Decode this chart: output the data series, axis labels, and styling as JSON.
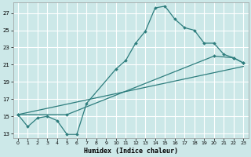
{
  "xlabel": "Humidex (Indice chaleur)",
  "bg_color": "#cce8e8",
  "line_color": "#2d7d7d",
  "xlim": [
    -0.5,
    23.5
  ],
  "ylim": [
    12.5,
    28.2
  ],
  "xticks": [
    0,
    1,
    2,
    3,
    4,
    5,
    6,
    7,
    8,
    9,
    10,
    11,
    12,
    13,
    14,
    15,
    16,
    17,
    18,
    19,
    20,
    21,
    22,
    23
  ],
  "yticks": [
    13,
    15,
    17,
    19,
    21,
    23,
    25,
    27
  ],
  "series1_x": [
    0,
    1,
    2,
    3,
    4,
    5,
    6,
    7,
    10,
    11,
    12,
    13,
    14,
    15,
    16,
    17,
    18,
    19,
    20,
    21,
    22,
    23
  ],
  "series1_y": [
    15.2,
    13.8,
    14.8,
    15.0,
    14.5,
    12.9,
    12.9,
    16.5,
    20.5,
    21.5,
    23.5,
    24.9,
    27.6,
    27.8,
    26.3,
    25.3,
    25.0,
    23.5,
    23.5,
    22.2,
    21.8,
    21.2
  ],
  "series2_x": [
    0,
    5,
    20,
    22,
    23
  ],
  "series2_y": [
    15.2,
    15.2,
    22.0,
    21.8,
    21.2
  ],
  "series3_x": [
    0,
    23
  ],
  "series3_y": [
    15.2,
    20.8
  ]
}
